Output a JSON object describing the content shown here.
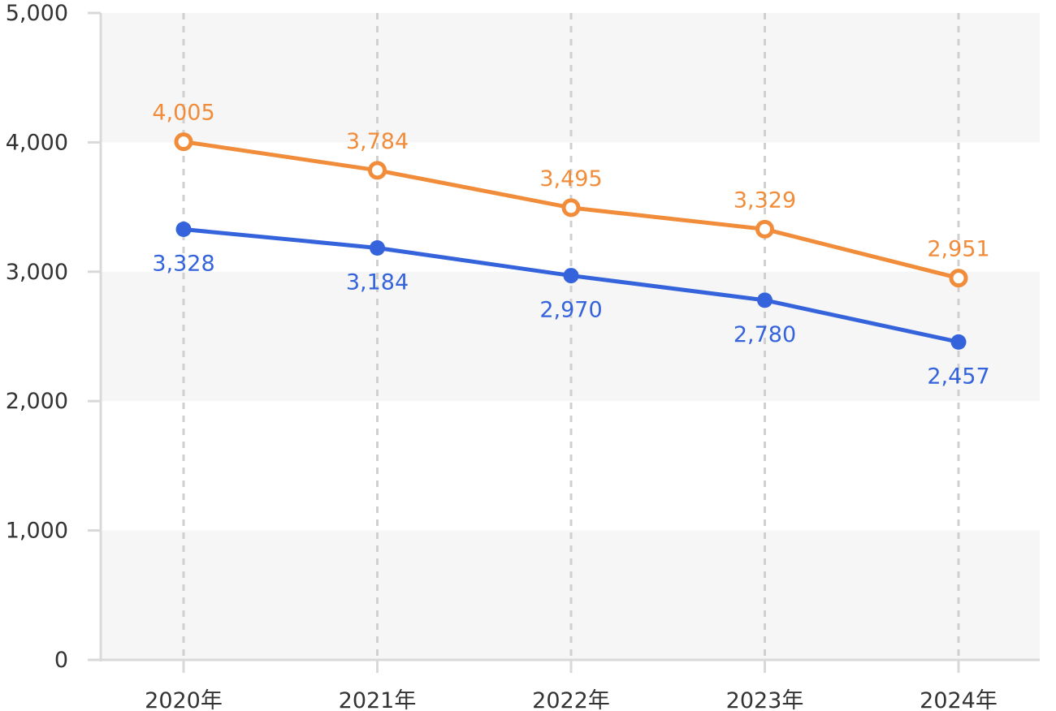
{
  "chart_data": {
    "type": "line",
    "categories": [
      "2020年",
      "2021年",
      "2022年",
      "2023年",
      "2024年"
    ],
    "series": [
      {
        "values": [
          4005,
          3784,
          3495,
          3329,
          2951
        ],
        "labels": [
          "4,005",
          "3,784",
          "3,495",
          "3,329",
          "2,951"
        ],
        "color": "#F08C3A",
        "marker": "hollow-circle",
        "label_position": "above"
      },
      {
        "values": [
          3328,
          3184,
          2970,
          2780,
          2457
        ],
        "labels": [
          "3,328",
          "3,184",
          "2,970",
          "2,780",
          "2,457"
        ],
        "color": "#3463DB",
        "marker": "filled-circle",
        "label_position": "below"
      }
    ],
    "ylim": [
      0,
      5000
    ],
    "yticks": [
      0,
      1000,
      2000,
      3000,
      4000,
      5000
    ],
    "ytick_labels": [
      "0",
      "1,000",
      "2,000",
      "3,000",
      "4,000",
      "5,000"
    ],
    "title": "",
    "xlabel": "",
    "ylabel": "",
    "grid": "vertical dashed lines at categories; alternating horizontal bands",
    "legend": "none"
  },
  "colors": {
    "band": "#F6F6F6",
    "axis": "#D9D9D9",
    "gridline": "#D0D0D0",
    "tick_text": "#333333"
  }
}
